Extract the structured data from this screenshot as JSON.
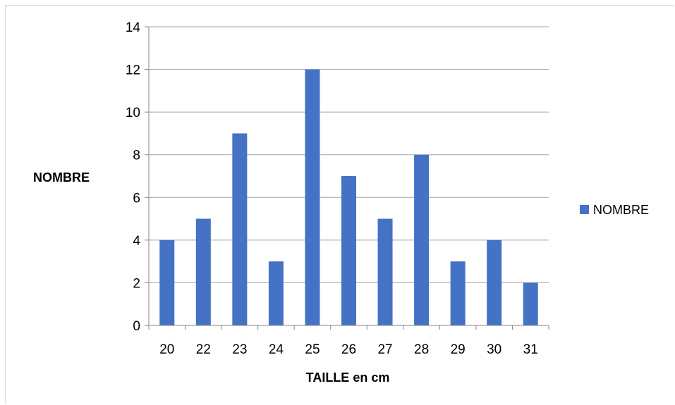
{
  "chart_data": {
    "type": "bar",
    "categories": [
      "20",
      "22",
      "23",
      "24",
      "25",
      "26",
      "27",
      "28",
      "29",
      "30",
      "31"
    ],
    "series": [
      {
        "name": "NOMBRE",
        "values": [
          4,
          5,
          9,
          3,
          12,
          7,
          5,
          8,
          3,
          4,
          2
        ],
        "color": "#4472c4"
      }
    ],
    "xlabel": "TAILLE en cm",
    "ylabel": "NOMBRE",
    "ylim": [
      0,
      14
    ],
    "yticks": [
      "0",
      "2",
      "4",
      "6",
      "8",
      "10",
      "12",
      "14"
    ],
    "grid": true,
    "gridColor": "#a6a6a6",
    "legend": "right"
  }
}
